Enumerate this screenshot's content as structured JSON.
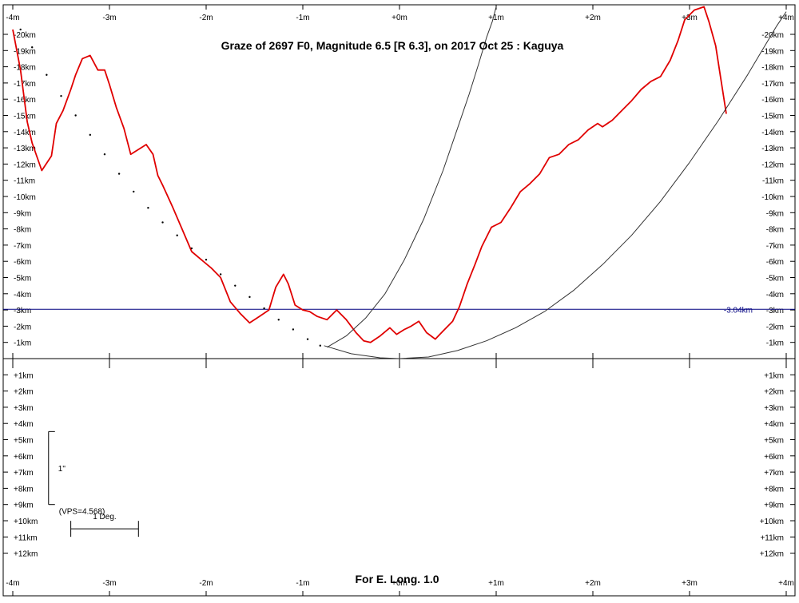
{
  "chart_data": {
    "type": "line",
    "title": "Graze of  2697 F0,  Magnitude 6.5 [R 6.3],  on 2017 Oct 25  :  Kaguya",
    "footer": "For E. Long. 1.0",
    "x_range": [
      -4,
      4
    ],
    "y_range": [
      -21,
      13
    ],
    "x_tick_values": [
      -4,
      -3,
      -2,
      -1,
      0,
      1,
      2,
      3,
      4
    ],
    "x_tick_labels": [
      "-4m",
      "-3m",
      "-2m",
      "-1m",
      "+0m",
      "+1m",
      "+2m",
      "+3m",
      "+4m"
    ],
    "y_tick_values": [
      -20,
      -19,
      -18,
      -17,
      -16,
      -15,
      -14,
      -13,
      -12,
      -11,
      -10,
      -9,
      -8,
      -7,
      -6,
      -5,
      -4,
      -3,
      -2,
      -1,
      1,
      2,
      3,
      4,
      5,
      6,
      7,
      8,
      9,
      10,
      11,
      12
    ],
    "y_tick_labels": [
      "-20km",
      "-19km",
      "-18km",
      "-17km",
      "-16km",
      "-15km",
      "-14km",
      "-13km",
      "-12km",
      "-11km",
      "-10km",
      "-9km",
      "-8km",
      "-7km",
      "-6km",
      "-5km",
      "-4km",
      "-3km",
      "-2km",
      "-1km",
      "+1km",
      "+2km",
      "+3km",
      "+4km",
      "+5km",
      "+6km",
      "+7km",
      "+8km",
      "+9km",
      "+10km",
      "+11km",
      "+12km"
    ],
    "reference_line": {
      "y": -3.04,
      "label": "-3.04km",
      "color": "#000080"
    },
    "series": [
      {
        "color": "#e00000",
        "style": "solid",
        "x": [
          -4.0,
          -3.92,
          -3.85,
          -3.8,
          -3.7,
          -3.6,
          -3.55,
          -3.48,
          -3.4,
          -3.35,
          -3.28,
          -3.2,
          -3.12,
          -3.05,
          -3.0,
          -2.93,
          -2.85,
          -2.78,
          -2.7,
          -2.62,
          -2.55,
          -2.5,
          -2.45,
          -2.35,
          -2.25,
          -2.15,
          -2.05,
          -1.95,
          -1.85,
          -1.75,
          -1.65,
          -1.55,
          -1.45,
          -1.35,
          -1.28,
          -1.2,
          -1.15,
          -1.08,
          -1.0,
          -0.93,
          -0.85,
          -0.75,
          -0.65,
          -0.55,
          -0.45,
          -0.37,
          -0.3,
          -0.2,
          -0.1,
          -0.03,
          0.05,
          0.12,
          0.2,
          0.28,
          0.37,
          0.45,
          0.55,
          0.62,
          0.7,
          0.78,
          0.85,
          0.95,
          1.05,
          1.15,
          1.25,
          1.35,
          1.45,
          1.55,
          1.65,
          1.75,
          1.85,
          1.95,
          2.05,
          2.1,
          2.2,
          2.3,
          2.4,
          2.5,
          2.6,
          2.7,
          2.8,
          2.88,
          2.95,
          3.05,
          3.15,
          3.2,
          3.27,
          3.32,
          3.38
        ],
        "y": [
          -20.3,
          -17.8,
          -14.6,
          -13.3,
          -11.6,
          -12.5,
          -14.5,
          -15.3,
          -16.6,
          -17.5,
          -18.5,
          -18.7,
          -17.8,
          -17.8,
          -16.9,
          -15.5,
          -14.2,
          -12.6,
          -12.9,
          -13.2,
          -12.6,
          -11.3,
          -10.7,
          -9.4,
          -8.0,
          -6.6,
          -6.1,
          -5.6,
          -5.0,
          -3.5,
          -2.8,
          -2.2,
          -2.6,
          -3.0,
          -4.4,
          -5.2,
          -4.6,
          -3.3,
          -3.0,
          -2.9,
          -2.6,
          -2.4,
          -3.0,
          -2.4,
          -1.6,
          -1.1,
          -1.0,
          -1.4,
          -1.9,
          -1.5,
          -1.8,
          -2.0,
          -2.3,
          -1.6,
          -1.2,
          -1.7,
          -2.3,
          -3.2,
          -4.6,
          -5.8,
          -6.9,
          -8.1,
          -8.4,
          -9.3,
          -10.3,
          -10.8,
          -11.4,
          -12.4,
          -12.6,
          -13.2,
          -13.5,
          -14.1,
          -14.5,
          -14.3,
          -14.7,
          -15.3,
          -15.9,
          -16.6,
          -17.1,
          -17.4,
          -18.4,
          -19.6,
          -20.9,
          -21.5,
          -21.7,
          -20.8,
          -19.3,
          -17.4,
          -15.1
        ]
      },
      {
        "color": "#000000",
        "style": "dotted",
        "x": [
          -3.92,
          -3.8,
          -3.65,
          -3.5,
          -3.35,
          -3.2,
          -3.05,
          -2.9,
          -2.75,
          -2.6,
          -2.45,
          -2.3,
          -2.15,
          -2.0,
          -1.85,
          -1.7,
          -1.55,
          -1.4,
          -1.25,
          -1.1,
          -0.95,
          -0.82
        ],
        "y": [
          -20.3,
          -19.2,
          -17.5,
          -16.2,
          -15.0,
          -13.8,
          -12.6,
          -11.4,
          -10.3,
          -9.3,
          -8.4,
          -7.6,
          -6.8,
          -6.1,
          -5.2,
          -4.5,
          -3.8,
          -3.1,
          -2.4,
          -1.8,
          -1.2,
          -0.8
        ]
      },
      {
        "color": "#333333",
        "style": "solid",
        "x": [
          -0.75,
          -0.55,
          -0.35,
          -0.15,
          0.05,
          0.25,
          0.45,
          0.6,
          0.72,
          0.82,
          0.9,
          0.96,
          1.0
        ],
        "y": [
          -0.7,
          -1.4,
          -2.5,
          -4.0,
          -6.1,
          -8.6,
          -11.6,
          -14.2,
          -16.3,
          -18.2,
          -19.8,
          -20.8,
          -21.7
        ]
      },
      {
        "color": "#333333",
        "style": "solid",
        "x": [
          -0.78,
          -0.5,
          -0.2,
          0.0,
          0.3,
          0.6,
          0.9,
          1.2,
          1.5,
          1.8,
          2.1,
          2.4,
          2.7,
          3.0,
          3.3,
          3.6,
          3.9,
          4.0
        ],
        "y": [
          -0.8,
          -0.3,
          -0.05,
          0.0,
          -0.1,
          -0.5,
          -1.1,
          -1.9,
          -2.9,
          -4.2,
          -5.8,
          -7.6,
          -9.7,
          -12.1,
          -14.7,
          -17.5,
          -20.5,
          -21.4
        ]
      }
    ],
    "scale_bar": {
      "label": "1 Deg.",
      "from": -3.4,
      "to": -2.7,
      "y": 10.5
    },
    "vertical_bar": {
      "label": "1\"",
      "vps_label": "(VPS=4.568)",
      "x": -3.63,
      "from": 4.5,
      "to": 9.0
    },
    "grid": false
  }
}
